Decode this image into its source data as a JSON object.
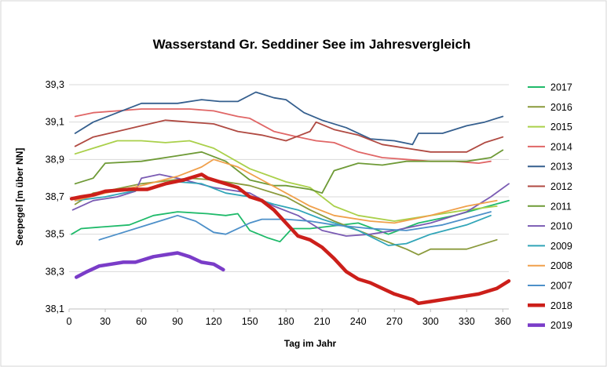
{
  "chart_data": {
    "type": "line",
    "title": "Wasserstand Gr. Seddiner See im Jahresvergleich",
    "xlabel": "Tag im Jahr",
    "ylabel": "Seepegel [m über NN]",
    "xlim": [
      0,
      365
    ],
    "ylim": [
      38.1,
      39.3
    ],
    "xticks": [
      0,
      30,
      60,
      90,
      120,
      150,
      180,
      210,
      240,
      270,
      300,
      330,
      360
    ],
    "yticks": [
      "39,3",
      "39,1",
      "38,9",
      "38,7",
      "38,5",
      "38,3",
      "38,1"
    ],
    "ytick_values": [
      39.3,
      39.1,
      38.9,
      38.7,
      38.5,
      38.3,
      38.1
    ],
    "grid": "horizontal",
    "legend_position": "right",
    "series": [
      {
        "name": "2017",
        "color": "#1fba6a",
        "thick": false,
        "x": [
          2,
          10,
          30,
          50,
          70,
          90,
          115,
          130,
          140,
          150,
          165,
          175,
          185,
          200,
          240,
          265,
          290,
          320,
          365
        ],
        "y": [
          38.5,
          38.53,
          38.54,
          38.55,
          38.6,
          38.62,
          38.61,
          38.6,
          38.61,
          38.52,
          38.48,
          38.46,
          38.53,
          38.53,
          38.56,
          38.5,
          38.56,
          38.6,
          38.68
        ]
      },
      {
        "name": "2016",
        "color": "#8a9a3c",
        "thick": false,
        "x": [
          5,
          20,
          30,
          60,
          100,
          120,
          150,
          180,
          200,
          210,
          220,
          240,
          260,
          280,
          290,
          300,
          330,
          355
        ],
        "y": [
          38.66,
          38.72,
          38.73,
          38.77,
          38.8,
          38.79,
          38.76,
          38.7,
          38.63,
          38.6,
          38.57,
          38.52,
          38.47,
          38.42,
          38.39,
          38.42,
          38.42,
          38.47
        ]
      },
      {
        "name": "2015",
        "color": "#aad04a",
        "thick": false,
        "x": [
          5,
          20,
          40,
          60,
          80,
          100,
          120,
          150,
          180,
          200,
          220,
          240,
          270,
          300,
          330,
          355
        ],
        "y": [
          38.93,
          38.96,
          39.0,
          39.0,
          38.99,
          39.0,
          38.96,
          38.85,
          38.78,
          38.75,
          38.65,
          38.6,
          38.57,
          38.6,
          38.63,
          38.65
        ]
      },
      {
        "name": "2014",
        "color": "#e06666",
        "thick": false,
        "x": [
          5,
          20,
          40,
          60,
          80,
          100,
          120,
          140,
          150,
          170,
          190,
          205,
          220,
          240,
          260,
          280,
          300,
          320,
          340,
          350
        ],
        "y": [
          39.13,
          39.15,
          39.16,
          39.17,
          39.17,
          39.17,
          39.16,
          39.13,
          39.12,
          39.05,
          39.02,
          39.0,
          38.99,
          38.94,
          38.91,
          38.9,
          38.89,
          38.89,
          38.88,
          38.89
        ]
      },
      {
        "name": "2013",
        "color": "#355f8e",
        "thick": false,
        "x": [
          5,
          20,
          40,
          60,
          90,
          110,
          125,
          140,
          155,
          170,
          180,
          195,
          210,
          230,
          250,
          270,
          285,
          290,
          310,
          330,
          345,
          360
        ],
        "y": [
          39.04,
          39.1,
          39.15,
          39.2,
          39.2,
          39.22,
          39.21,
          39.21,
          39.26,
          39.23,
          39.22,
          39.15,
          39.11,
          39.07,
          39.01,
          39.0,
          38.98,
          39.04,
          39.04,
          39.08,
          39.1,
          39.13
        ]
      },
      {
        "name": "2012",
        "color": "#b04a42",
        "thick": false,
        "x": [
          5,
          20,
          40,
          60,
          80,
          100,
          120,
          140,
          160,
          180,
          200,
          205,
          220,
          240,
          260,
          280,
          300,
          330,
          345,
          360
        ],
        "y": [
          38.97,
          39.02,
          39.05,
          39.08,
          39.11,
          39.1,
          39.09,
          39.05,
          39.03,
          39.0,
          39.05,
          39.1,
          39.06,
          39.03,
          38.98,
          38.96,
          38.94,
          38.94,
          38.99,
          39.02
        ]
      },
      {
        "name": "2011",
        "color": "#6e9a36",
        "thick": false,
        "x": [
          5,
          20,
          30,
          60,
          90,
          110,
          130,
          150,
          170,
          180,
          200,
          210,
          220,
          240,
          260,
          280,
          300,
          330,
          350,
          360
        ],
        "y": [
          38.77,
          38.8,
          38.88,
          38.89,
          38.92,
          38.94,
          38.89,
          38.79,
          38.76,
          38.76,
          38.74,
          38.72,
          38.84,
          38.88,
          38.87,
          38.89,
          38.89,
          38.89,
          38.91,
          38.95
        ]
      },
      {
        "name": "2010",
        "color": "#7a5bb3",
        "thick": false,
        "x": [
          3,
          20,
          40,
          55,
          60,
          75,
          90,
          120,
          150,
          170,
          190,
          210,
          230,
          250,
          270,
          300,
          330,
          350,
          365
        ],
        "y": [
          38.63,
          38.68,
          38.7,
          38.73,
          38.8,
          38.82,
          38.8,
          38.75,
          38.72,
          38.65,
          38.6,
          38.52,
          38.49,
          38.5,
          38.52,
          38.56,
          38.62,
          38.7,
          38.77
        ]
      },
      {
        "name": "2009",
        "color": "#31a5b8",
        "thick": false,
        "x": [
          5,
          30,
          60,
          90,
          110,
          130,
          150,
          170,
          190,
          210,
          240,
          265,
          280,
          300,
          330,
          350
        ],
        "y": [
          38.68,
          38.7,
          38.74,
          38.78,
          38.77,
          38.72,
          38.7,
          38.66,
          38.63,
          38.58,
          38.52,
          38.44,
          38.45,
          38.5,
          38.55,
          38.6
        ]
      },
      {
        "name": "2008",
        "color": "#f0a04b",
        "thick": false,
        "x": [
          5,
          30,
          60,
          90,
          110,
          120,
          140,
          160,
          180,
          200,
          220,
          250,
          270,
          300,
          330,
          355
        ],
        "y": [
          38.68,
          38.72,
          38.76,
          38.81,
          38.86,
          38.9,
          38.86,
          38.79,
          38.72,
          38.65,
          38.6,
          38.57,
          38.56,
          38.6,
          38.65,
          38.68
        ]
      },
      {
        "name": "2007",
        "color": "#4d90c9",
        "thick": false,
        "x": [
          25,
          40,
          60,
          80,
          90,
          105,
          120,
          130,
          150,
          160,
          180,
          200,
          220,
          250,
          280,
          310,
          350
        ],
        "y": [
          38.47,
          38.5,
          38.54,
          38.58,
          38.6,
          38.57,
          38.51,
          38.5,
          38.56,
          38.58,
          38.58,
          38.57,
          38.55,
          38.53,
          38.52,
          38.55,
          38.62
        ]
      },
      {
        "name": "2018",
        "color": "#cc1f1a",
        "thick": true,
        "x": [
          2,
          10,
          20,
          30,
          50,
          65,
          80,
          95,
          110,
          115,
          130,
          140,
          150,
          160,
          170,
          180,
          190,
          200,
          210,
          220,
          230,
          240,
          250,
          260,
          270,
          280,
          285,
          290,
          300,
          320,
          340,
          355,
          365
        ],
        "y": [
          38.69,
          38.7,
          38.71,
          38.73,
          38.74,
          38.74,
          38.77,
          38.79,
          38.82,
          38.8,
          38.77,
          38.75,
          38.7,
          38.68,
          38.63,
          38.56,
          38.49,
          38.47,
          38.43,
          38.37,
          38.3,
          38.26,
          38.24,
          38.21,
          38.18,
          38.16,
          38.15,
          38.13,
          38.14,
          38.16,
          38.18,
          38.21,
          38.25
        ]
      },
      {
        "name": "2019",
        "color": "#7a3cc8",
        "thick": true,
        "x": [
          6,
          15,
          25,
          35,
          45,
          55,
          60,
          70,
          80,
          90,
          100,
          110,
          120,
          128
        ],
        "y": [
          38.27,
          38.3,
          38.33,
          38.34,
          38.35,
          38.35,
          38.36,
          38.38,
          38.39,
          38.4,
          38.38,
          38.35,
          38.34,
          38.31
        ]
      }
    ]
  }
}
